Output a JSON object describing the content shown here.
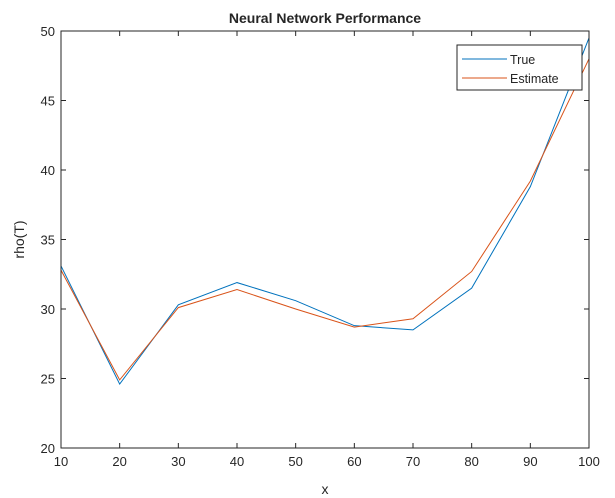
{
  "chart_data": {
    "type": "line",
    "title": "Neural Network Performance",
    "xlabel": "x",
    "ylabel": "rho(T)",
    "xlim": [
      10,
      100
    ],
    "ylim": [
      20,
      50
    ],
    "xticks": [
      10,
      20,
      30,
      40,
      50,
      60,
      70,
      80,
      90,
      100
    ],
    "yticks": [
      20,
      25,
      30,
      35,
      40,
      45,
      50
    ],
    "grid": false,
    "legend_position": "top-right",
    "x": [
      10,
      20,
      30,
      40,
      50,
      60,
      70,
      80,
      90,
      100
    ],
    "series": [
      {
        "name": "True",
        "color": "#0072BD",
        "values": [
          33.1,
          24.6,
          30.3,
          31.9,
          30.6,
          28.8,
          28.5,
          31.5,
          38.8,
          49.5
        ]
      },
      {
        "name": "Estimate",
        "color": "#D95319",
        "values": [
          32.8,
          24.9,
          30.1,
          31.4,
          30.0,
          28.7,
          29.3,
          32.7,
          39.2,
          48.0
        ]
      }
    ]
  }
}
